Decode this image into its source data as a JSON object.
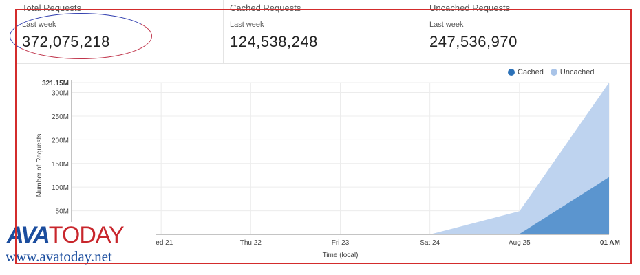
{
  "stats": [
    {
      "title": "Total Requests",
      "subtitle": "Last week",
      "value": "372,075,218"
    },
    {
      "title": "Cached Requests",
      "subtitle": "Last week",
      "value": "124,538,248"
    },
    {
      "title": "Uncached Requests",
      "subtitle": "Last week",
      "value": "247,536,970"
    }
  ],
  "legend": [
    {
      "label": "Cached",
      "color": "#2d72b8"
    },
    {
      "label": "Uncached",
      "color": "#a9c4e8"
    }
  ],
  "chart_data": {
    "type": "area",
    "ylabel": "Number of Requests",
    "xlabel": "Time (local)",
    "ymax_label": "321.15M",
    "ylim": [
      0,
      321.15
    ],
    "y_ticks": [
      50,
      100,
      150,
      200,
      250,
      300
    ],
    "y_tick_labels": [
      "50M",
      "100M",
      "150M",
      "200M",
      "250M",
      "300M"
    ],
    "x_tick_labels": [
      "01 AM",
      "Wed 21",
      "Thu 22",
      "Fri 23",
      "Sat 24",
      "Aug 25",
      "01 AM"
    ],
    "x": [
      0,
      1,
      2,
      3,
      4,
      5,
      6
    ],
    "grid": true,
    "stacked": true,
    "series": [
      {
        "name": "Cached",
        "values": [
          0,
          0,
          0,
          0,
          0,
          1,
          121
        ],
        "color": "#5b95cf"
      },
      {
        "name": "Uncached",
        "values": [
          0,
          0,
          0,
          0,
          0,
          48,
          200
        ],
        "color": "#bed3ef"
      }
    ]
  },
  "watermark": {
    "brand": "AVATODAY",
    "brand_part1": "AVA",
    "brand_part2": "TODAY",
    "url": "www.avatoday.net"
  }
}
